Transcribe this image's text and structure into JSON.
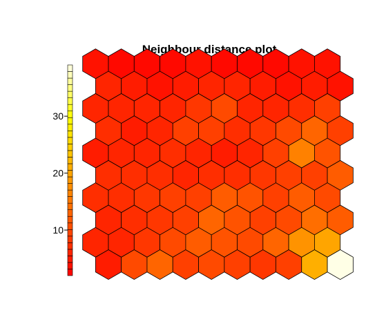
{
  "chart_data": {
    "type": "heatmap",
    "title": "Neighbour distance plot",
    "xlabel": "",
    "ylabel": "",
    "grid": false,
    "legend": "left",
    "layout": "hexagonal",
    "rows": 10,
    "cols": 10,
    "scale": {
      "min": 2,
      "max": 39,
      "ticks": [
        10,
        20,
        30
      ],
      "palette": "heat (red to white)"
    },
    "values_bottom_row_first": [
      [
        5,
        10,
        13,
        9,
        10,
        9,
        8,
        9,
        21,
        39
      ],
      [
        6,
        6,
        8,
        10,
        12,
        11,
        10,
        13,
        18,
        20
      ],
      [
        6,
        7,
        8,
        9,
        13,
        11,
        9,
        10,
        14,
        12
      ],
      [
        7,
        7,
        8,
        9,
        9,
        12,
        11,
        9,
        12,
        10
      ],
      [
        7,
        7,
        7,
        6,
        7,
        7,
        8,
        9,
        9,
        12
      ],
      [
        5,
        6,
        6,
        7,
        6,
        5,
        6,
        9,
        16,
        11
      ],
      [
        7,
        5,
        6,
        9,
        9,
        7,
        8,
        10,
        13,
        9
      ],
      [
        6,
        6,
        6,
        6,
        8,
        10,
        6,
        6,
        7,
        9
      ],
      [
        6,
        5,
        4,
        5,
        6,
        6,
        5,
        4,
        5,
        4
      ],
      [
        4,
        3,
        3,
        3,
        4,
        3,
        3,
        3,
        4,
        4
      ]
    ]
  }
}
